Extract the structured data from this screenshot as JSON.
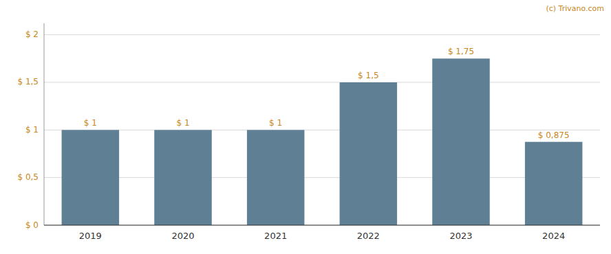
{
  "chart_data": {
    "type": "bar",
    "categories": [
      "2019",
      "2020",
      "2021",
      "2022",
      "2023",
      "2024"
    ],
    "values": [
      1.0,
      1.0,
      1.0,
      1.5,
      1.75,
      0.875
    ],
    "value_labels": [
      "$ 1",
      "$ 1",
      "$ 1",
      "$ 1,5",
      "$ 1,75",
      "$ 0,875"
    ],
    "color": "#5f8094",
    "ylim": [
      0,
      2.12
    ],
    "yticks": [
      {
        "value": 0,
        "label": "$ 0"
      },
      {
        "value": 0.5,
        "label": "$ 0,5"
      },
      {
        "value": 1.0,
        "label": "$ 1"
      },
      {
        "value": 1.5,
        "label": "$ 1,5"
      },
      {
        "value": 2.0,
        "label": "$ 2"
      }
    ],
    "grid": true,
    "data_labels": true,
    "annotations": [
      "(c) Trivano.com"
    ]
  }
}
